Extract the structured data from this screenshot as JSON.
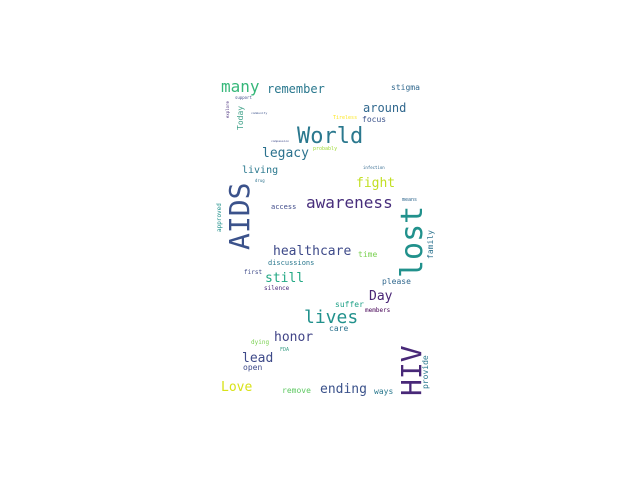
{
  "words": [
    {
      "text": "World",
      "color": "#2a788e"
    },
    {
      "text": "AIDS",
      "color": "#3b528b"
    },
    {
      "text": "lost",
      "color": "#21918c"
    },
    {
      "text": "HIV",
      "color": "#482878"
    },
    {
      "text": "awareness",
      "color": "#472d7b"
    },
    {
      "text": "lives",
      "color": "#21918c"
    },
    {
      "text": "many",
      "color": "#35b779"
    },
    {
      "text": "healthcare",
      "color": "#3e4a89"
    },
    {
      "text": "remember",
      "color": "#2a788e"
    },
    {
      "text": "legacy",
      "color": "#2c728e"
    },
    {
      "text": "fight",
      "color": "#c2df23"
    },
    {
      "text": "still",
      "color": "#22a884"
    },
    {
      "text": "Day",
      "color": "#482475"
    },
    {
      "text": "honor",
      "color": "#414487"
    },
    {
      "text": "ending",
      "color": "#3b528b"
    },
    {
      "text": "lead",
      "color": "#3e4a89"
    },
    {
      "text": "Love",
      "color": "#d8e219"
    },
    {
      "text": "around",
      "color": "#31688e"
    },
    {
      "text": "living",
      "color": "#2a788e"
    },
    {
      "text": "stigma",
      "color": "#31688e"
    },
    {
      "text": "focus",
      "color": "#3b528b"
    },
    {
      "text": "Today",
      "color": "#3b9f86"
    },
    {
      "text": "discussions",
      "color": "#2a788e"
    },
    {
      "text": "access",
      "color": "#3e4a89"
    },
    {
      "text": "time",
      "color": "#7ad151"
    },
    {
      "text": "please",
      "color": "#31688e"
    },
    {
      "text": "suffer",
      "color": "#1fa187"
    },
    {
      "text": "care",
      "color": "#2c728e"
    },
    {
      "text": "open",
      "color": "#3e4a89"
    },
    {
      "text": "remove",
      "color": "#5ec962"
    },
    {
      "text": "ways",
      "color": "#2a788e"
    },
    {
      "text": "provide",
      "color": "#2a788e"
    },
    {
      "text": "family",
      "color": "#2c728e"
    },
    {
      "text": "dying",
      "color": "#7ad151"
    },
    {
      "text": "approved",
      "color": "#21918c"
    },
    {
      "text": "first",
      "color": "#3e4a89"
    },
    {
      "text": "silence",
      "color": "#482878"
    },
    {
      "text": "members",
      "color": "#440154"
    },
    {
      "text": "FDA",
      "color": "#3b9f86"
    },
    {
      "text": "means",
      "color": "#31688e"
    },
    {
      "text": "probably",
      "color": "#a0da39"
    },
    {
      "text": "Tireless",
      "color": "#fde725"
    },
    {
      "text": "explore",
      "color": "#472d7b"
    },
    {
      "text": "support",
      "color": "#3e4a89"
    },
    {
      "text": "drug",
      "color": "#2c728e"
    },
    {
      "text": "infection",
      "color": "#31688e"
    },
    {
      "text": "community",
      "color": "#3b528b"
    },
    {
      "text": "compassion",
      "color": "#3e4a89"
    }
  ]
}
